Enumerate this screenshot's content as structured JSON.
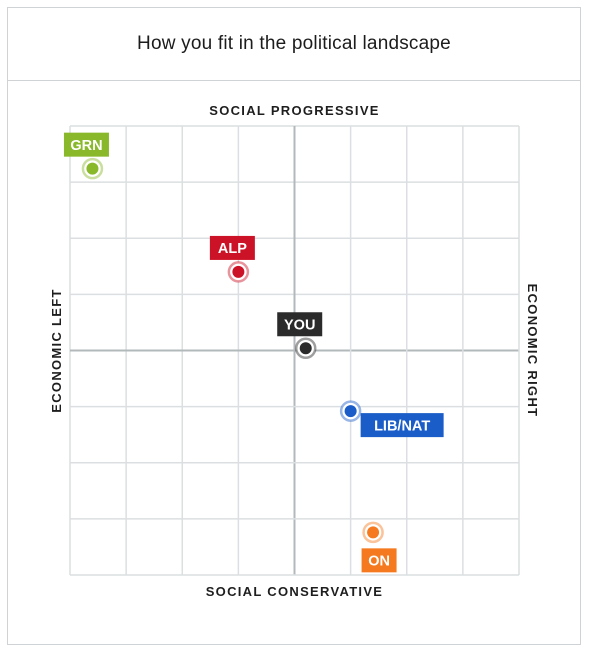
{
  "header": {
    "title": "How you fit in the political landscape"
  },
  "chart_data": {
    "type": "scatter",
    "title": "How you fit in the political landscape",
    "axes": {
      "top": "SOCIAL PROGRESSIVE",
      "bottom": "SOCIAL CONSERVATIVE",
      "left": "ECONOMIC LEFT",
      "right": "ECONOMIC RIGHT"
    },
    "xlim": [
      -1,
      1
    ],
    "ylim": [
      -1,
      1
    ],
    "grid": true,
    "grid_divisions": 8,
    "points": [
      {
        "label": "GRN",
        "x": -0.9,
        "y": 0.81,
        "color": "#8ab82b",
        "label_position": "above"
      },
      {
        "label": "ALP",
        "x": -0.25,
        "y": 0.35,
        "color": "#cc1226",
        "label_position": "above"
      },
      {
        "label": "YOU",
        "x": 0.05,
        "y": 0.01,
        "color": "#2b2b2b",
        "label_position": "above"
      },
      {
        "label": "LIB/NAT",
        "x": 0.25,
        "y": -0.27,
        "color": "#1a5dc8",
        "label_position": "right"
      },
      {
        "label": "ON",
        "x": 0.35,
        "y": -0.81,
        "color": "#f57a1f",
        "label_position": "below"
      }
    ]
  }
}
